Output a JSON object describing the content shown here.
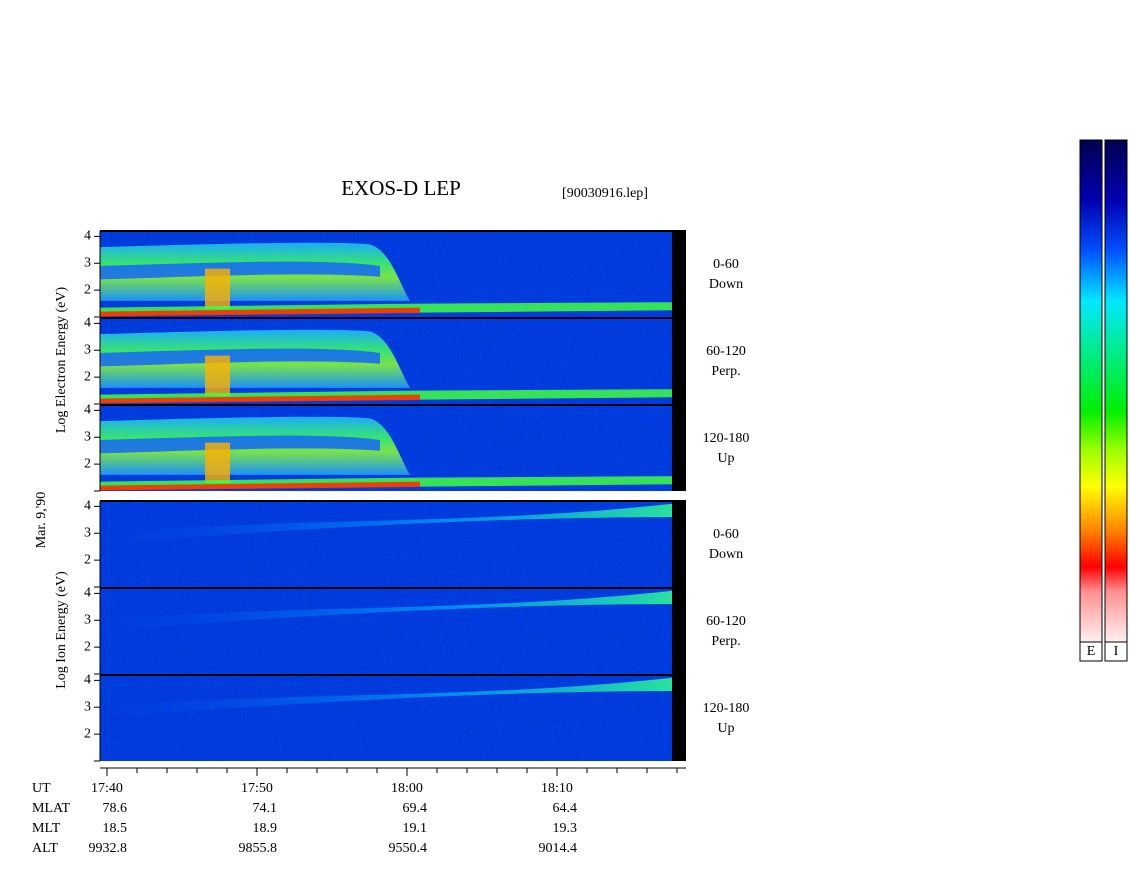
{
  "title": "EXOS-D LEP",
  "file": "[90030916.lep]",
  "date": "Mar. 9,'90",
  "energy_axis": {
    "ylim": [
      1,
      4.2
    ],
    "yticks": [
      2,
      3,
      4
    ]
  },
  "electron": {
    "axis_label": "Log Electron Energy (eV)",
    "panels": [
      {
        "range": "0-60",
        "direction": "Down"
      },
      {
        "range": "60-120",
        "direction": "Perp."
      },
      {
        "range": "120-180",
        "direction": "Up"
      }
    ]
  },
  "ion": {
    "axis_label": "Log Ion Energy (eV)",
    "panels": [
      {
        "range": "0-60",
        "direction": "Down"
      },
      {
        "range": "60-120",
        "direction": "Perp."
      },
      {
        "range": "120-180",
        "direction": "Up"
      }
    ]
  },
  "time_axis": {
    "label": "UT",
    "ticks": [
      "17:40",
      "17:50",
      "18:00",
      "18:10"
    ]
  },
  "orbit": [
    {
      "label": "MLAT",
      "values": [
        78.6,
        74.1,
        69.4,
        64.4
      ]
    },
    {
      "label": "MLT",
      "values": [
        18.5,
        18.9,
        19.1,
        19.3
      ]
    },
    {
      "label": "ALT",
      "values": [
        9932.8,
        9855.8,
        9550.4,
        9014.4
      ]
    }
  ],
  "colorbar": {
    "labels": [
      "E",
      "I"
    ]
  }
}
